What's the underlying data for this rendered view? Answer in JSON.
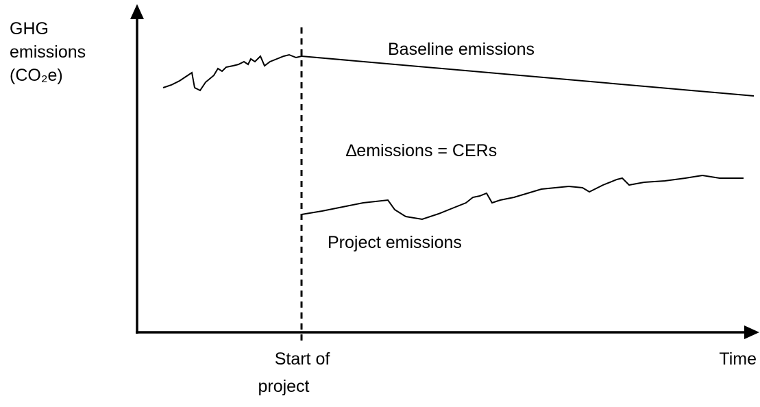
{
  "y_label": [
    "GHG",
    "emissions",
    "(CO₂e)"
  ],
  "x_label": "Time",
  "start_label": [
    "Start of",
    "project"
  ],
  "labels": {
    "baseline": "Baseline emissions",
    "delta": "∆emissions = CERs",
    "project": "Project emissions"
  }
}
